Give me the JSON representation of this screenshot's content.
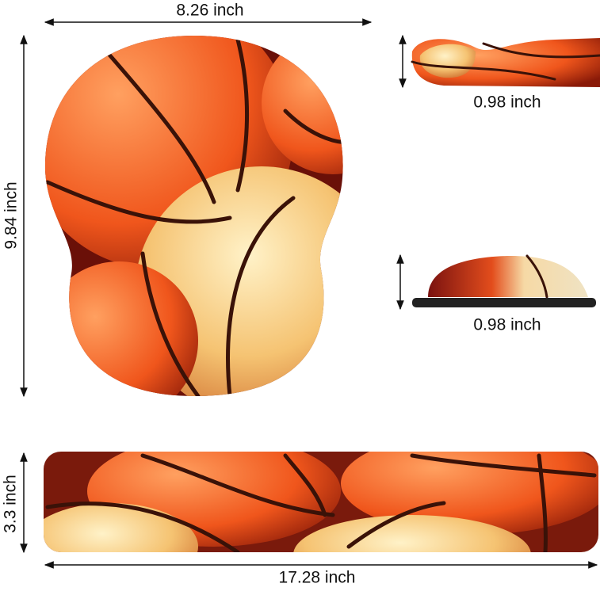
{
  "dimensions": {
    "mouse_pad_width": "8.26 inch",
    "mouse_pad_height": "9.84 inch",
    "mouse_pad_thickness": "0.98 inch",
    "wrist_rest_thickness": "0.98 inch",
    "wrist_rest_depth": "3.3 inch",
    "wrist_rest_length": "17.28 inch"
  }
}
